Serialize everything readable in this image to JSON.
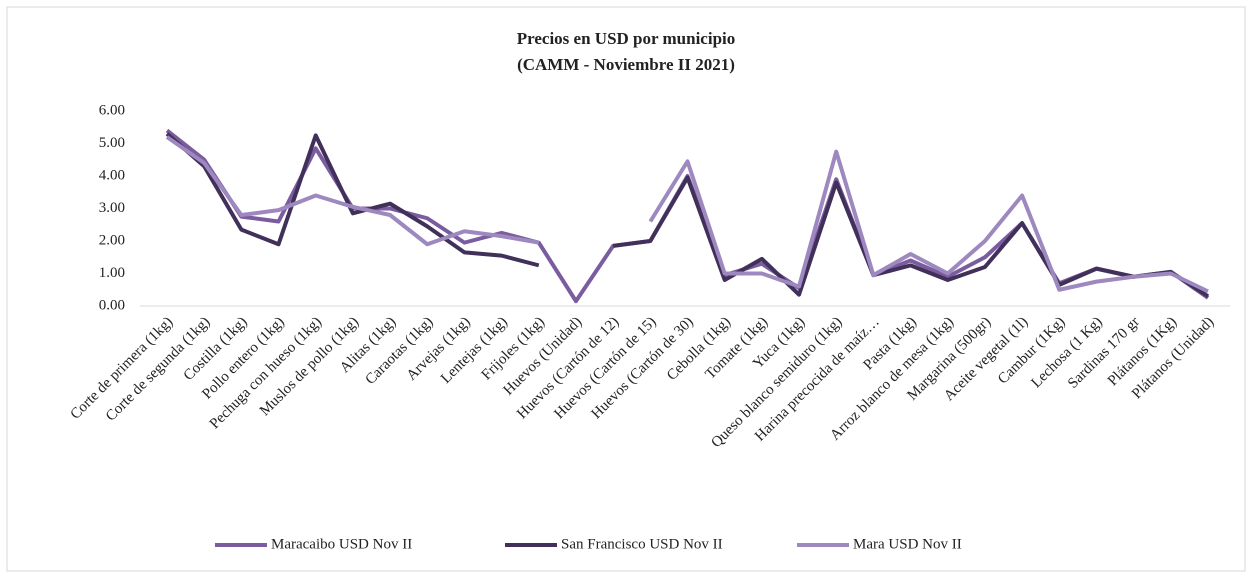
{
  "chart_data": {
    "type": "line",
    "title": "Precios en USD por municipio",
    "subtitle": "(CAMM - Noviembre II 2021)",
    "categories": [
      "Corte de primera (1kg)",
      "Corte de segunda (1kg)",
      "Costilla (1kg)",
      "Pollo entero (1kg)",
      "Pechuga con hueso (1kg)",
      "Muslos de pollo (1kg)",
      "Alitas (1kg)",
      "Caraotas (1kg)",
      "Arvejas (1kg)",
      "Lentejas (1kg)",
      "Frijoles (1kg)",
      "Huevos (Unidad)",
      "Huevos (Cartón de 12)",
      "Huevos (Cartón de 15)",
      "Huevos (Cartón de 30)",
      "Cebolla (1kg)",
      "Tomate (1kg)",
      "Yuca (1kg)",
      "Queso blanco semiduro (1kg)",
      "Harina precocida de maíz…",
      "Pasta (1kg)",
      "Arroz blanco de mesa (1kg)",
      "Margarina (500gr)",
      "Aceite vegetal (1l)",
      "Cambur (1Kg)",
      "Lechosa (1 Kg)",
      "Sardinas 170 gr",
      "Plátanos (1Kg)",
      "Plátanos (Unidad)"
    ],
    "series": [
      {
        "name": "Maracaibo USD Nov II",
        "color": "#7b5c9e",
        "values": [
          5.4,
          4.5,
          2.75,
          2.6,
          4.85,
          3.0,
          3.0,
          2.7,
          1.95,
          2.25,
          1.95,
          0.15,
          1.85,
          2.0,
          4.0,
          0.95,
          1.3,
          0.55,
          3.9,
          0.95,
          1.4,
          0.9,
          1.5,
          2.55,
          0.7,
          1.15,
          0.9,
          1.05,
          0.25
        ]
      },
      {
        "name": "San Francisco USD Nov II",
        "color": "#40305a",
        "values": [
          5.3,
          4.3,
          2.35,
          1.9,
          5.25,
          2.85,
          3.15,
          2.45,
          1.65,
          1.55,
          1.25,
          null,
          1.85,
          2.0,
          3.95,
          0.8,
          1.45,
          0.35,
          3.8,
          0.95,
          1.25,
          0.8,
          1.2,
          2.55,
          0.65,
          1.15,
          0.9,
          1.05,
          0.3
        ]
      },
      {
        "name": "Mara USD Nov II",
        "color": "#9d88bf",
        "values": [
          5.2,
          4.4,
          2.8,
          2.95,
          3.4,
          3.05,
          2.8,
          1.9,
          2.3,
          2.15,
          1.95,
          null,
          null,
          2.6,
          4.45,
          1.0,
          1.0,
          0.6,
          4.75,
          0.95,
          1.6,
          1.0,
          2.0,
          3.4,
          0.5,
          0.75,
          0.9,
          1.0,
          0.45
        ]
      }
    ],
    "ylim": [
      0,
      6
    ],
    "yticks": [
      {
        "value": 0,
        "label": "0.00"
      },
      {
        "value": 1,
        "label": "1.00"
      },
      {
        "value": 2,
        "label": "2.00"
      },
      {
        "value": 3,
        "label": "3.00"
      },
      {
        "value": 4,
        "label": "4.00"
      },
      {
        "value": 5,
        "label": "5.00"
      },
      {
        "value": 6,
        "label": "6.00"
      }
    ],
    "grid": false,
    "legend": "bottom"
  }
}
